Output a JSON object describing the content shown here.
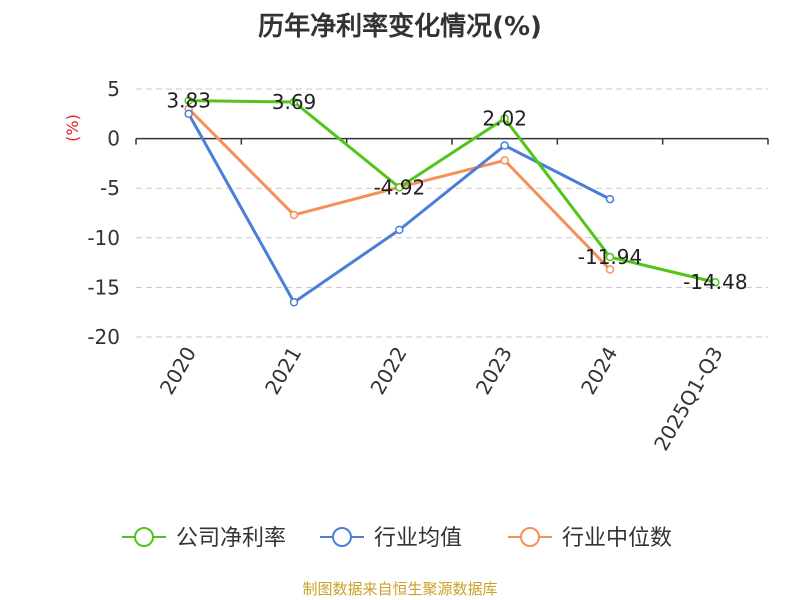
{
  "title": "历年净利率变化情况(%)",
  "source_note": "制图数据来自恒生聚源数据库",
  "chart_data": {
    "type": "line",
    "title": "历年净利率变化情况(%)",
    "ylabel": "(%)",
    "categories": [
      "2020",
      "2021",
      "2022",
      "2023",
      "2024",
      "2025Q1-Q3"
    ],
    "ylim": [
      -20,
      5
    ],
    "yticks": [
      5,
      0,
      -5,
      -10,
      -15,
      -20
    ],
    "grid": "dashed-horizontal",
    "legend_position": "bottom",
    "series": [
      {
        "name": "公司净利率",
        "color": "#52c41a",
        "values": [
          3.83,
          3.69,
          -4.92,
          2.02,
          -11.94,
          -14.48
        ],
        "labels": [
          "3.83",
          "3.69",
          "-4.92",
          "2.02",
          "-11.94",
          "-14.48"
        ]
      },
      {
        "name": "行业均值",
        "color": "#4a7fd8",
        "values": [
          2.5,
          -16.5,
          -9.2,
          -0.7,
          -6.1,
          null
        ]
      },
      {
        "name": "行业中位数",
        "color": "#f5905a",
        "values": [
          3.0,
          -7.7,
          -4.9,
          -2.2,
          -13.2,
          null
        ]
      }
    ]
  }
}
